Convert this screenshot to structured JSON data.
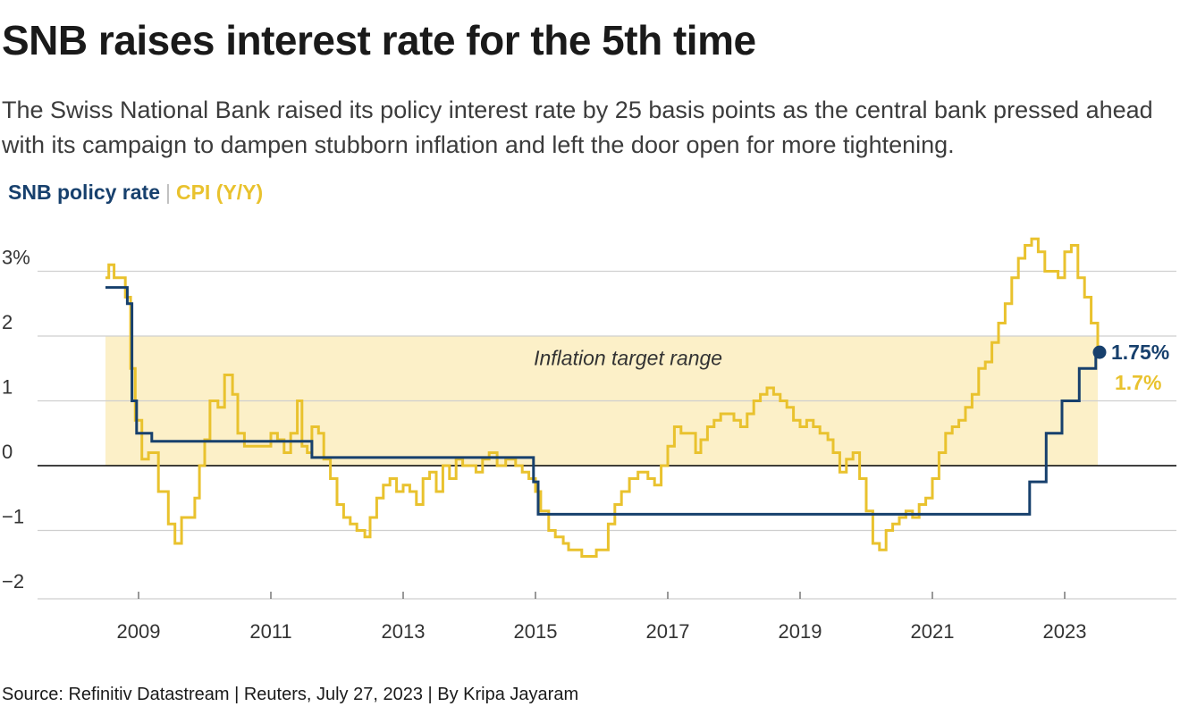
{
  "title": "SNB raises interest rate for the 5th time",
  "subtitle": "The Swiss National Bank raised its policy interest rate by 25 basis points as the central bank pressed ahead with its campaign to dampen stubborn inflation and left the door open for more tightening.",
  "legend": {
    "policy": "SNB policy rate",
    "separator": "|",
    "cpi": "CPI (Y/Y)"
  },
  "source": "Source: Refinitiv Datastream | Reuters, July 27, 2023 | By Kripa Jayaram",
  "colors": {
    "policy": "#17406d",
    "cpi": "#e9c22e",
    "band": "#fcf0c8",
    "grid": "#cfcfcf",
    "zero": "#000000"
  },
  "chart_data": {
    "type": "line",
    "title": "SNB raises interest rate for the 5th time",
    "xlabel": "",
    "ylabel": "",
    "xlim": [
      2008.5,
      2024.5
    ],
    "ylim": [
      -2,
      3.5
    ],
    "x_ticks": [
      "2009",
      "2011",
      "2013",
      "2015",
      "2017",
      "2019",
      "2021",
      "2023"
    ],
    "y_ticks": [
      "3%",
      "2",
      "1",
      "0",
      "−1",
      "−2"
    ],
    "grid": true,
    "band": {
      "label": "Inflation target range",
      "from": 0,
      "to": 2
    },
    "end_labels": {
      "policy": "1.75%",
      "cpi": "1.7%"
    },
    "series": [
      {
        "name": "SNB policy rate",
        "step": true,
        "points": [
          [
            2008.5,
            2.75
          ],
          [
            2008.83,
            2.5
          ],
          [
            2008.9,
            1.0
          ],
          [
            2008.97,
            0.5
          ],
          [
            2009.2,
            0.375
          ],
          [
            2011.62,
            0.125
          ],
          [
            2014.97,
            -0.25
          ],
          [
            2015.04,
            -0.75
          ],
          [
            2022.47,
            -0.25
          ],
          [
            2022.72,
            0.5
          ],
          [
            2022.96,
            1.0
          ],
          [
            2023.22,
            1.5
          ],
          [
            2023.47,
            1.75
          ],
          [
            2023.5,
            1.75
          ]
        ]
      },
      {
        "name": "CPI (Y/Y)",
        "step": true,
        "points": [
          [
            2008.5,
            2.9
          ],
          [
            2008.55,
            3.1
          ],
          [
            2008.63,
            2.9
          ],
          [
            2008.7,
            2.9
          ],
          [
            2008.8,
            2.6
          ],
          [
            2008.88,
            1.5
          ],
          [
            2008.95,
            0.7
          ],
          [
            2009.05,
            0.1
          ],
          [
            2009.15,
            0.2
          ],
          [
            2009.3,
            -0.4
          ],
          [
            2009.45,
            -0.9
          ],
          [
            2009.55,
            -1.2
          ],
          [
            2009.65,
            -0.8
          ],
          [
            2009.75,
            -0.8
          ],
          [
            2009.85,
            -0.5
          ],
          [
            2009.92,
            0.0
          ],
          [
            2010.0,
            0.4
          ],
          [
            2010.08,
            1.0
          ],
          [
            2010.2,
            0.9
          ],
          [
            2010.3,
            1.4
          ],
          [
            2010.42,
            1.1
          ],
          [
            2010.5,
            0.5
          ],
          [
            2010.6,
            0.3
          ],
          [
            2010.75,
            0.3
          ],
          [
            2010.9,
            0.3
          ],
          [
            2011.0,
            0.5
          ],
          [
            2011.1,
            0.4
          ],
          [
            2011.2,
            0.2
          ],
          [
            2011.3,
            0.5
          ],
          [
            2011.4,
            1.0
          ],
          [
            2011.47,
            0.3
          ],
          [
            2011.55,
            0.2
          ],
          [
            2011.62,
            0.6
          ],
          [
            2011.72,
            0.5
          ],
          [
            2011.8,
            0.1
          ],
          [
            2011.9,
            -0.2
          ],
          [
            2012.0,
            -0.6
          ],
          [
            2012.1,
            -0.8
          ],
          [
            2012.2,
            -0.9
          ],
          [
            2012.3,
            -1.0
          ],
          [
            2012.42,
            -1.1
          ],
          [
            2012.5,
            -0.8
          ],
          [
            2012.6,
            -0.5
          ],
          [
            2012.7,
            -0.3
          ],
          [
            2012.8,
            -0.2
          ],
          [
            2012.9,
            -0.4
          ],
          [
            2013.0,
            -0.3
          ],
          [
            2013.1,
            -0.4
          ],
          [
            2013.2,
            -0.6
          ],
          [
            2013.3,
            -0.2
          ],
          [
            2013.4,
            -0.1
          ],
          [
            2013.5,
            -0.4
          ],
          [
            2013.6,
            0.0
          ],
          [
            2013.7,
            -0.2
          ],
          [
            2013.8,
            0.1
          ],
          [
            2013.9,
            0.0
          ],
          [
            2014.0,
            0.0
          ],
          [
            2014.1,
            -0.1
          ],
          [
            2014.2,
            0.1
          ],
          [
            2014.3,
            0.2
          ],
          [
            2014.42,
            0.0
          ],
          [
            2014.55,
            0.1
          ],
          [
            2014.7,
            0.0
          ],
          [
            2014.8,
            -0.1
          ],
          [
            2014.9,
            -0.2
          ],
          [
            2015.0,
            -0.4
          ],
          [
            2015.08,
            -0.7
          ],
          [
            2015.2,
            -1.0
          ],
          [
            2015.3,
            -1.1
          ],
          [
            2015.42,
            -1.2
          ],
          [
            2015.5,
            -1.3
          ],
          [
            2015.6,
            -1.3
          ],
          [
            2015.7,
            -1.4
          ],
          [
            2015.8,
            -1.4
          ],
          [
            2015.92,
            -1.3
          ],
          [
            2016.0,
            -1.3
          ],
          [
            2016.1,
            -0.9
          ],
          [
            2016.2,
            -0.6
          ],
          [
            2016.3,
            -0.4
          ],
          [
            2016.42,
            -0.2
          ],
          [
            2016.55,
            -0.1
          ],
          [
            2016.7,
            -0.2
          ],
          [
            2016.8,
            -0.3
          ],
          [
            2016.9,
            0.0
          ],
          [
            2017.0,
            0.3
          ],
          [
            2017.1,
            0.6
          ],
          [
            2017.2,
            0.5
          ],
          [
            2017.3,
            0.5
          ],
          [
            2017.42,
            0.2
          ],
          [
            2017.5,
            0.4
          ],
          [
            2017.6,
            0.6
          ],
          [
            2017.7,
            0.7
          ],
          [
            2017.8,
            0.8
          ],
          [
            2017.92,
            0.8
          ],
          [
            2018.0,
            0.7
          ],
          [
            2018.1,
            0.6
          ],
          [
            2018.2,
            0.8
          ],
          [
            2018.3,
            1.0
          ],
          [
            2018.4,
            1.1
          ],
          [
            2018.5,
            1.2
          ],
          [
            2018.6,
            1.1
          ],
          [
            2018.7,
            1.0
          ],
          [
            2018.8,
            0.9
          ],
          [
            2018.9,
            0.7
          ],
          [
            2019.0,
            0.6
          ],
          [
            2019.1,
            0.7
          ],
          [
            2019.2,
            0.6
          ],
          [
            2019.3,
            0.5
          ],
          [
            2019.42,
            0.4
          ],
          [
            2019.5,
            0.2
          ],
          [
            2019.6,
            -0.1
          ],
          [
            2019.7,
            0.1
          ],
          [
            2019.8,
            0.2
          ],
          [
            2019.9,
            -0.2
          ],
          [
            2020.0,
            -0.7
          ],
          [
            2020.1,
            -1.2
          ],
          [
            2020.2,
            -1.3
          ],
          [
            2020.3,
            -1.0
          ],
          [
            2020.4,
            -0.9
          ],
          [
            2020.5,
            -0.8
          ],
          [
            2020.6,
            -0.7
          ],
          [
            2020.7,
            -0.8
          ],
          [
            2020.8,
            -0.6
          ],
          [
            2020.9,
            -0.5
          ],
          [
            2021.0,
            -0.2
          ],
          [
            2021.1,
            0.2
          ],
          [
            2021.2,
            0.5
          ],
          [
            2021.3,
            0.6
          ],
          [
            2021.4,
            0.7
          ],
          [
            2021.5,
            0.9
          ],
          [
            2021.6,
            1.1
          ],
          [
            2021.7,
            1.5
          ],
          [
            2021.8,
            1.6
          ],
          [
            2021.9,
            1.9
          ],
          [
            2022.0,
            2.2
          ],
          [
            2022.1,
            2.5
          ],
          [
            2022.2,
            2.9
          ],
          [
            2022.3,
            3.2
          ],
          [
            2022.4,
            3.4
          ],
          [
            2022.5,
            3.5
          ],
          [
            2022.6,
            3.3
          ],
          [
            2022.7,
            3.0
          ],
          [
            2022.8,
            3.0
          ],
          [
            2022.9,
            2.9
          ],
          [
            2023.0,
            3.3
          ],
          [
            2023.1,
            3.4
          ],
          [
            2023.2,
            2.9
          ],
          [
            2023.3,
            2.6
          ],
          [
            2023.4,
            2.2
          ],
          [
            2023.5,
            1.7
          ]
        ]
      }
    ]
  }
}
